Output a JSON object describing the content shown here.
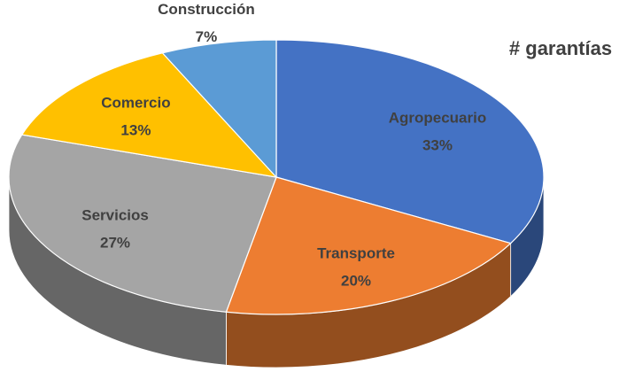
{
  "chart_data": {
    "type": "pie",
    "title": "# garantías",
    "categories": [
      "Agropecuario",
      "Transporte",
      "Servicios",
      "Comercio",
      "Construcción"
    ],
    "values": [
      33,
      20,
      27,
      13,
      7
    ],
    "value_labels": [
      "33%",
      "20%",
      "27%",
      "13%",
      "7%"
    ],
    "colors": [
      "#4472c4",
      "#ed7d31",
      "#a5a5a5",
      "#ffc000",
      "#5b9bd5"
    ]
  }
}
